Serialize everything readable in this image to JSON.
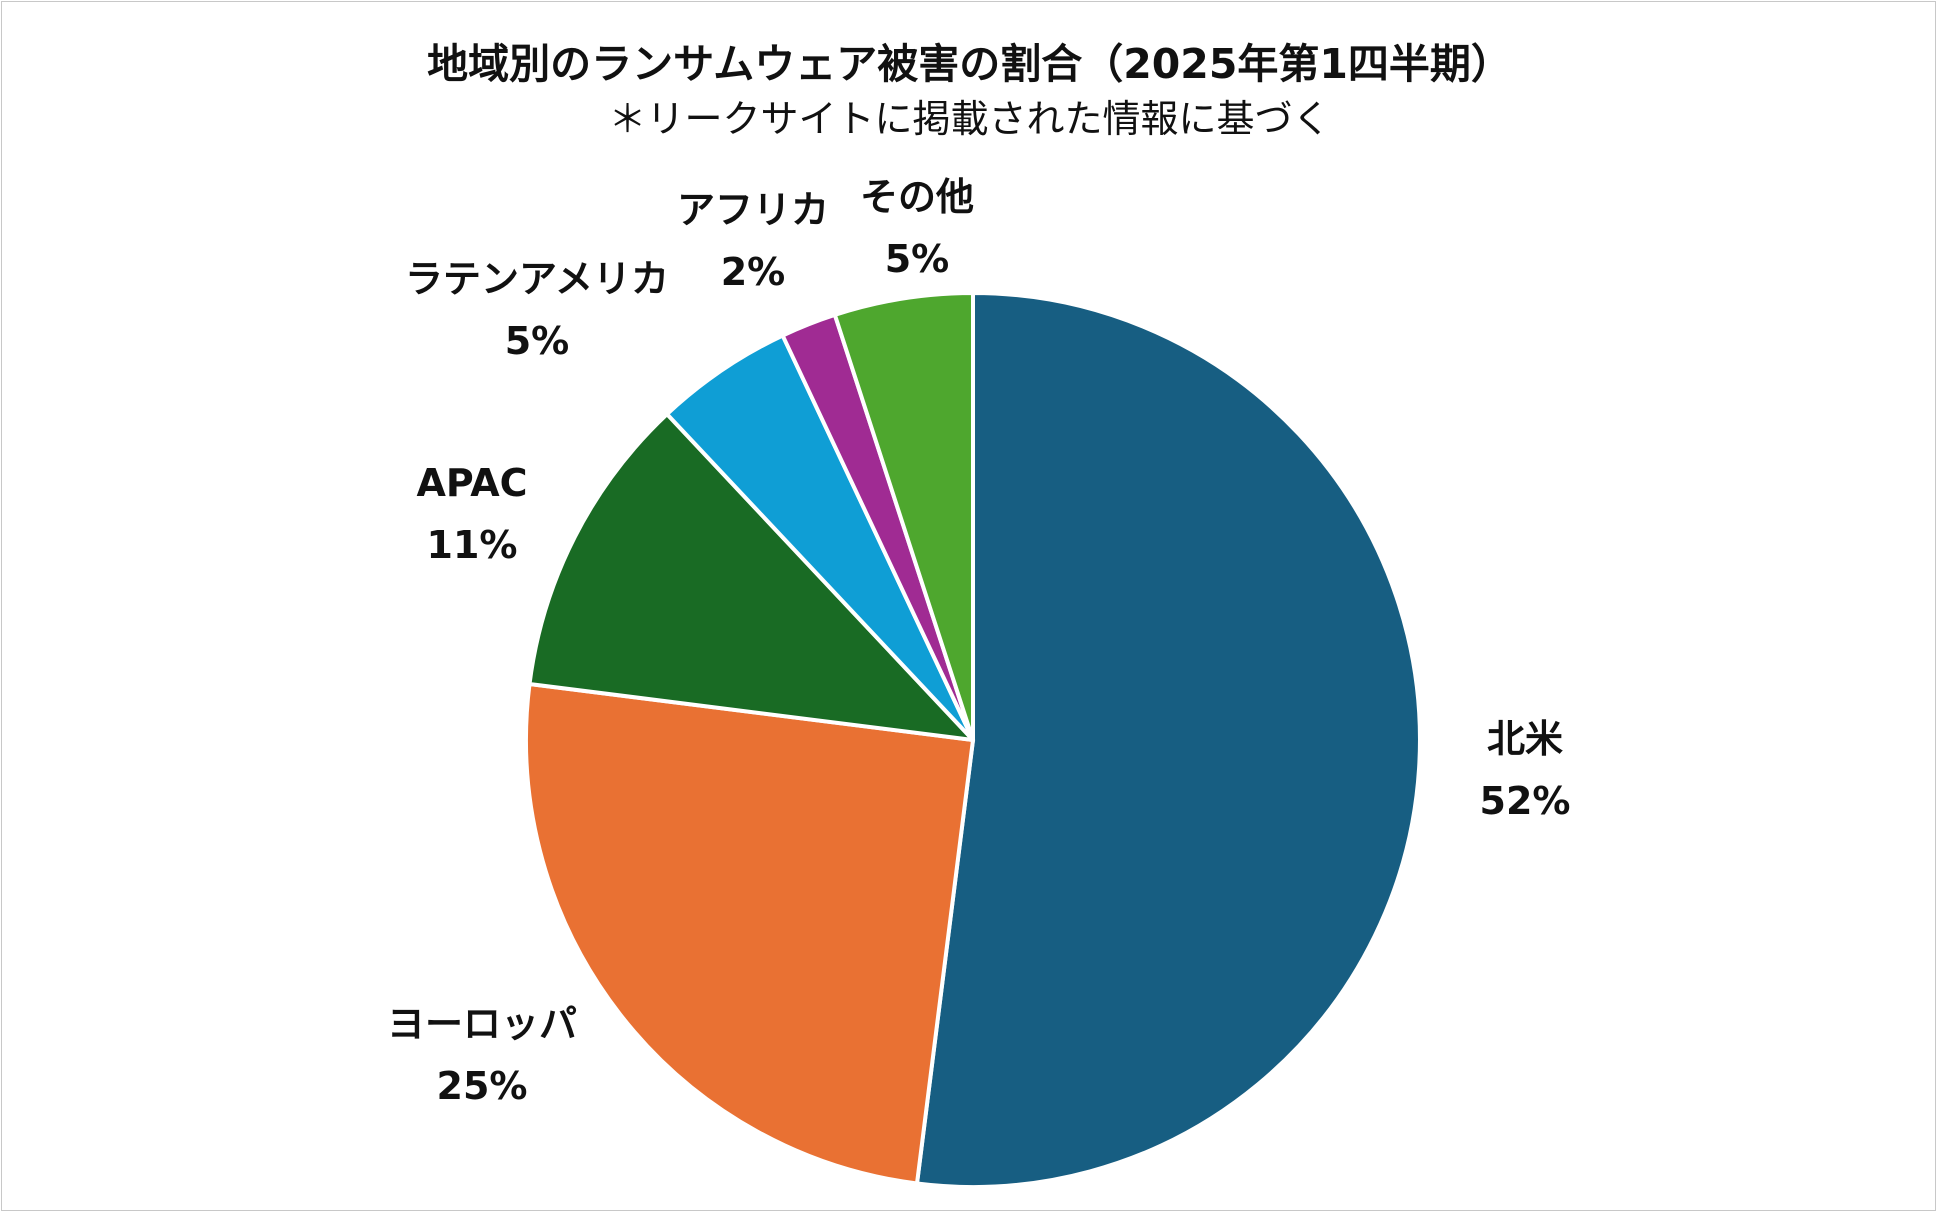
{
  "chart_data": {
    "type": "pie",
    "title": "地域別のランサムウェア被害の割合（2025年第1四半期）",
    "subtitle": "＊リークサイトに掲載された情報に基づく",
    "start_angle_deg": 0,
    "direction": "clockwise",
    "legend": "none",
    "slices": [
      {
        "name": "北米",
        "value": 52,
        "label": "52%",
        "color": "#175E82"
      },
      {
        "name": "ヨーロッパ",
        "value": 25,
        "label": "25%",
        "color": "#E97133"
      },
      {
        "name": "APAC",
        "value": 11,
        "label": "11%",
        "color": "#196B24"
      },
      {
        "name": "ラテンアメリカ",
        "value": 5,
        "label": "5%",
        "color": "#0F9ED5"
      },
      {
        "name": "アフリカ",
        "value": 2,
        "label": "2%",
        "color": "#A02B93"
      },
      {
        "name": "その他",
        "value": 5,
        "label": "5%",
        "color": "#4EA72E"
      }
    ]
  }
}
